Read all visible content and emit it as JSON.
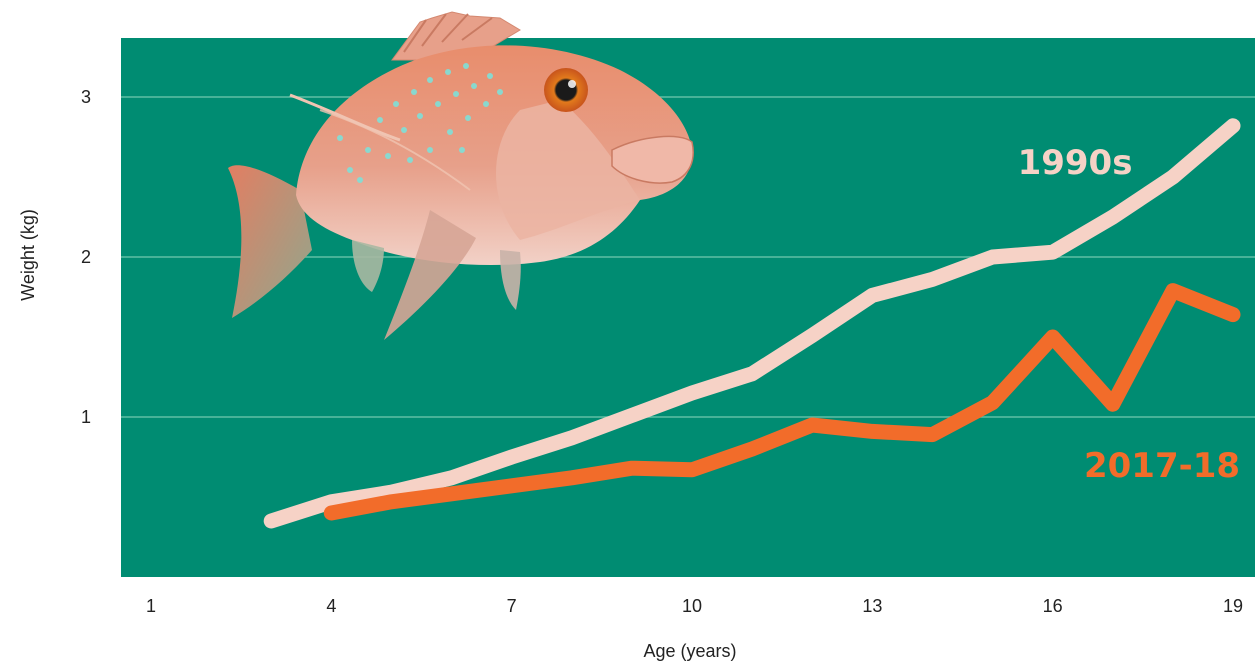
{
  "chart_data": {
    "type": "line",
    "title": "",
    "xlabel": "Age (years)",
    "ylabel": "Weight (kg)",
    "xlim": [
      0.5,
      19.5
    ],
    "ylim": [
      0,
      3.35
    ],
    "x_ticks": [
      1,
      4,
      7,
      10,
      13,
      16,
      19
    ],
    "y_ticks": [
      1,
      2,
      3
    ],
    "grid": true,
    "background_color": "#008C72",
    "grid_color": "#5FBFA5",
    "series": [
      {
        "name": "1990s",
        "color": "#F6D2C6",
        "x": [
          3,
          4,
          5,
          6,
          7,
          8,
          9,
          10,
          11,
          12,
          13,
          14,
          15,
          16,
          17,
          18,
          19
        ],
        "values": [
          0.35,
          0.47,
          0.53,
          0.62,
          0.75,
          0.87,
          1.01,
          1.15,
          1.27,
          1.51,
          1.76,
          1.86,
          2.0,
          2.03,
          2.25,
          2.5,
          2.82
        ]
      },
      {
        "name": "2017-18",
        "color": "#F26C2A",
        "x": [
          4,
          5,
          6,
          7,
          8,
          9,
          10,
          11,
          12,
          13,
          14,
          15,
          16,
          17,
          18,
          19
        ],
        "values": [
          0.4,
          0.47,
          0.52,
          0.57,
          0.62,
          0.68,
          0.67,
          0.8,
          0.95,
          0.91,
          0.89,
          1.09,
          1.5,
          1.08,
          1.79,
          1.64
        ]
      }
    ]
  },
  "illustration": {
    "icon": "snapper-fish-illustration"
  }
}
